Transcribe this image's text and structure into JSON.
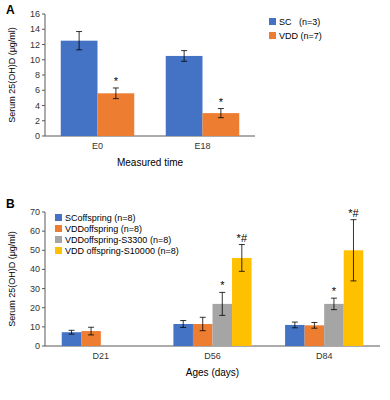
{
  "chart_data": [
    {
      "type": "bar",
      "title": "A",
      "x_label": "Measured time",
      "y_label": "Serum 25(OH)D (μg/ml)",
      "categories": [
        "E0",
        "E18"
      ],
      "series": [
        {
          "name": "SC   (n=3)",
          "color": "#4472c4",
          "values": [
            12.5,
            10.5
          ],
          "errors": [
            1.2,
            0.7
          ],
          "annotations": [
            null,
            null
          ]
        },
        {
          "name": "VDD (n=7)",
          "color": "#ed7d31",
          "values": [
            5.6,
            3.0
          ],
          "errors": [
            0.7,
            0.6
          ],
          "annotations": [
            "*",
            "*"
          ]
        }
      ],
      "ylim": [
        0,
        16
      ],
      "yticks": [
        0,
        2,
        4,
        6,
        8,
        10,
        12,
        14,
        16
      ],
      "grid": false,
      "legend": "right"
    },
    {
      "type": "bar",
      "title": "B",
      "x_label": "Ages (days)",
      "y_label": "Serum 25(OH)D (μg/ml)",
      "categories": [
        "D21",
        "D56",
        "D84"
      ],
      "series": [
        {
          "name": "SCoffspring (n=8)",
          "color": "#4472c4",
          "values": [
            7.2,
            11.5,
            11.0
          ],
          "errors": [
            1.0,
            1.8,
            1.5
          ],
          "annotations": [
            null,
            null,
            null
          ]
        },
        {
          "name": "VDDoffspring (n=8)",
          "color": "#ed7d31",
          "values": [
            7.8,
            11.5,
            10.8
          ],
          "errors": [
            2.0,
            3.5,
            1.5
          ],
          "annotations": [
            null,
            null,
            null
          ]
        },
        {
          "name": "VDDoffspring-S3300 (n=8)",
          "color": "#a5a5a5",
          "values": [
            null,
            22,
            22
          ],
          "errors": [
            null,
            6,
            3
          ],
          "annotations": [
            null,
            "*",
            "*"
          ]
        },
        {
          "name": "VDD offspring-S10000 (n=8)",
          "color": "#ffc000",
          "values": [
            null,
            46,
            50
          ],
          "errors": [
            null,
            7,
            16
          ],
          "annotations": [
            null,
            "*#",
            "*#"
          ]
        }
      ],
      "ylim": [
        0,
        70
      ],
      "yticks": [
        0,
        10,
        20,
        30,
        40,
        50,
        60,
        70
      ],
      "grid": false,
      "legend": "top-left"
    }
  ]
}
